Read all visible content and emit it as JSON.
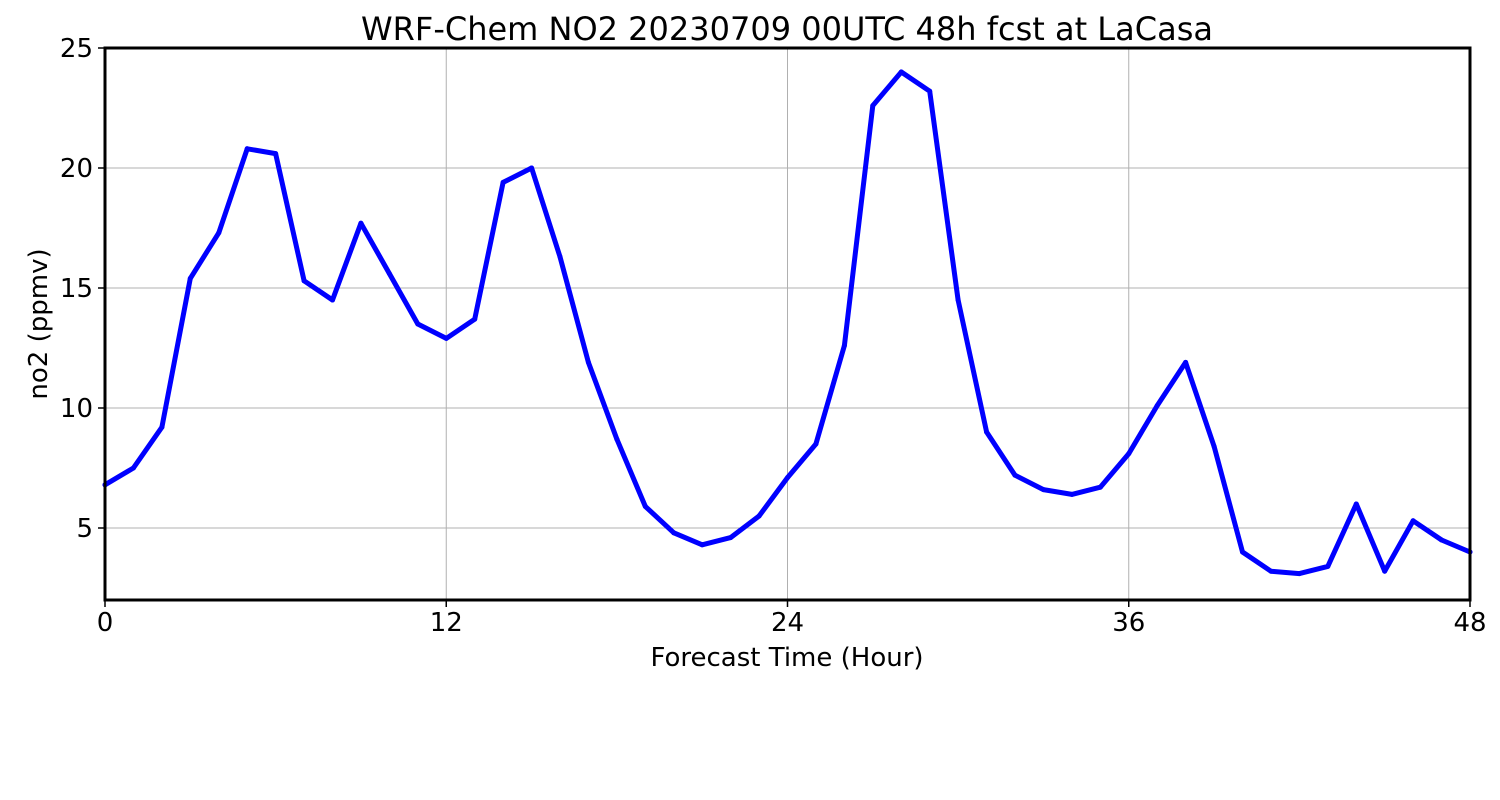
{
  "chart_data": {
    "type": "line",
    "title": "WRF-Chem NO2  20230709 00UTC 48h fcst at LaCasa",
    "xlabel": "Forecast Time (Hour)",
    "ylabel": "no2  (ppmv)",
    "xlim": [
      0,
      48
    ],
    "ylim": [
      2,
      25
    ],
    "xticks": [
      0,
      12,
      24,
      36,
      48
    ],
    "yticks": [
      5,
      10,
      15,
      20,
      25
    ],
    "grid": true,
    "legend": "none",
    "series": [
      {
        "color": "#0000ff",
        "x": [
          0,
          1,
          2,
          3,
          4,
          5,
          6,
          7,
          8,
          9,
          10,
          11,
          12,
          13,
          14,
          15,
          16,
          17,
          18,
          19,
          20,
          21,
          22,
          23,
          24,
          25,
          26,
          27,
          28,
          29,
          30,
          31,
          32,
          33,
          34,
          35,
          36,
          37,
          38,
          39,
          40,
          41,
          42,
          43,
          44,
          45,
          46,
          47,
          48
        ],
        "y": [
          6.8,
          7.5,
          9.2,
          15.4,
          17.3,
          20.8,
          20.6,
          15.3,
          14.5,
          17.7,
          15.6,
          13.5,
          12.9,
          13.7,
          19.4,
          20.0,
          16.3,
          11.9,
          8.7,
          5.9,
          4.8,
          4.3,
          4.6,
          5.5,
          7.1,
          8.5,
          12.6,
          22.6,
          24.0,
          23.2,
          14.5,
          9.0,
          7.2,
          6.6,
          6.4,
          6.7,
          8.1,
          10.1,
          11.9,
          8.4,
          4.0,
          3.2,
          3.1,
          3.4,
          6.0,
          3.2,
          5.3,
          4.5,
          4.0
        ]
      }
    ]
  }
}
